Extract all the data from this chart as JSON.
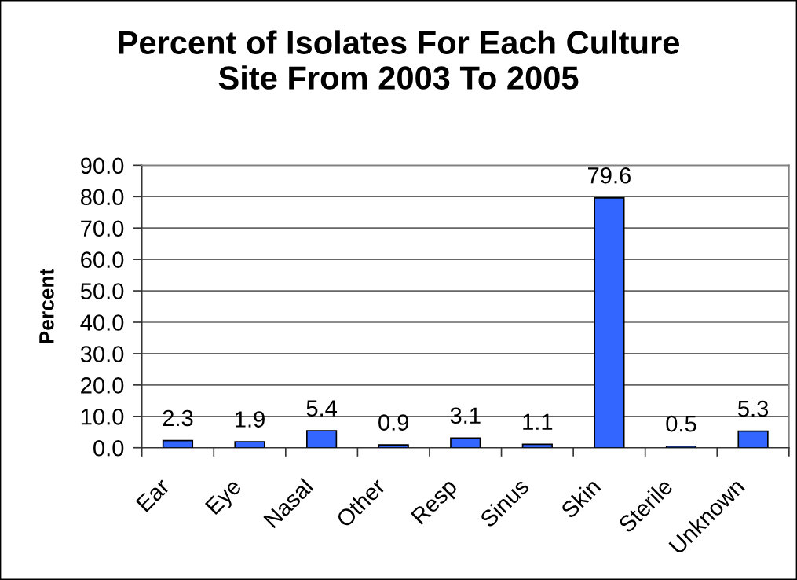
{
  "chart_data": {
    "type": "bar",
    "title": "Percent of Isolates For Each Culture\nSite From 2003 To 2005",
    "ylabel": "Percent",
    "categories": [
      "Ear",
      "Eye",
      "Nasal",
      "Other",
      "Resp",
      "Sinus",
      "Skin",
      "Sterile",
      "Unknown"
    ],
    "values": [
      2.3,
      1.9,
      5.4,
      0.9,
      3.1,
      1.1,
      79.6,
      0.5,
      5.3
    ],
    "color": "#3366ff",
    "ylim": [
      0,
      90
    ],
    "yticks": [
      {
        "value": 0,
        "label": "0.0"
      },
      {
        "value": 10,
        "label": "10.0"
      },
      {
        "value": 20,
        "label": "20.0"
      },
      {
        "value": 30,
        "label": "30.0"
      },
      {
        "value": 40,
        "label": "40.0"
      },
      {
        "value": 50,
        "label": "50.0"
      },
      {
        "value": 60,
        "label": "60.0"
      },
      {
        "value": 70,
        "label": "70.0"
      },
      {
        "value": 80,
        "label": "80.0"
      },
      {
        "value": 90,
        "label": "90.0"
      }
    ],
    "grid": "y",
    "data_labels": true,
    "legend": false
  }
}
